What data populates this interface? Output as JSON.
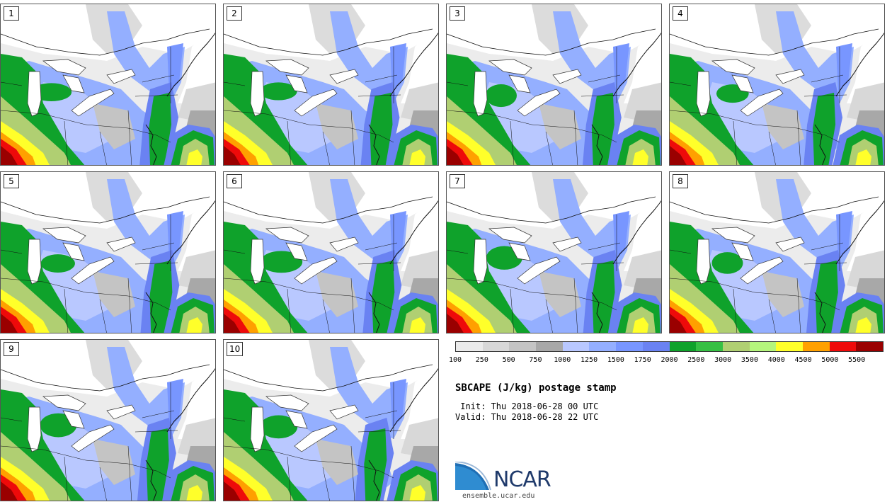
{
  "title": "SBCAPE (J/kg) postage stamp",
  "init_line": " Init: Thu 2018-06-28 00 UTC",
  "valid_line": "Valid: Thu 2018-06-28 22 UTC",
  "website": "ensemble.ucar.edu",
  "logo_text": "NCAR",
  "members": [
    "1",
    "2",
    "3",
    "4",
    "5",
    "6",
    "7",
    "8",
    "9",
    "10"
  ],
  "colorbar": {
    "labels": [
      "100",
      "250",
      "500",
      "750",
      "1000",
      "1250",
      "1500",
      "1750",
      "2000",
      "2500",
      "3000",
      "3500",
      "4000",
      "4500",
      "5000",
      "5500"
    ],
    "colors": [
      "#ebebeb",
      "#d8d8d8",
      "#c4c4c4",
      "#a8a8a8",
      "#b9c8ff",
      "#94afff",
      "#7896ff",
      "#6a82f2",
      "#0fa22b",
      "#36c044",
      "#b0cf72",
      "#b5f57d",
      "#ffff2a",
      "#ffa000",
      "#ee0a0a",
      "#9a0000"
    ]
  }
}
